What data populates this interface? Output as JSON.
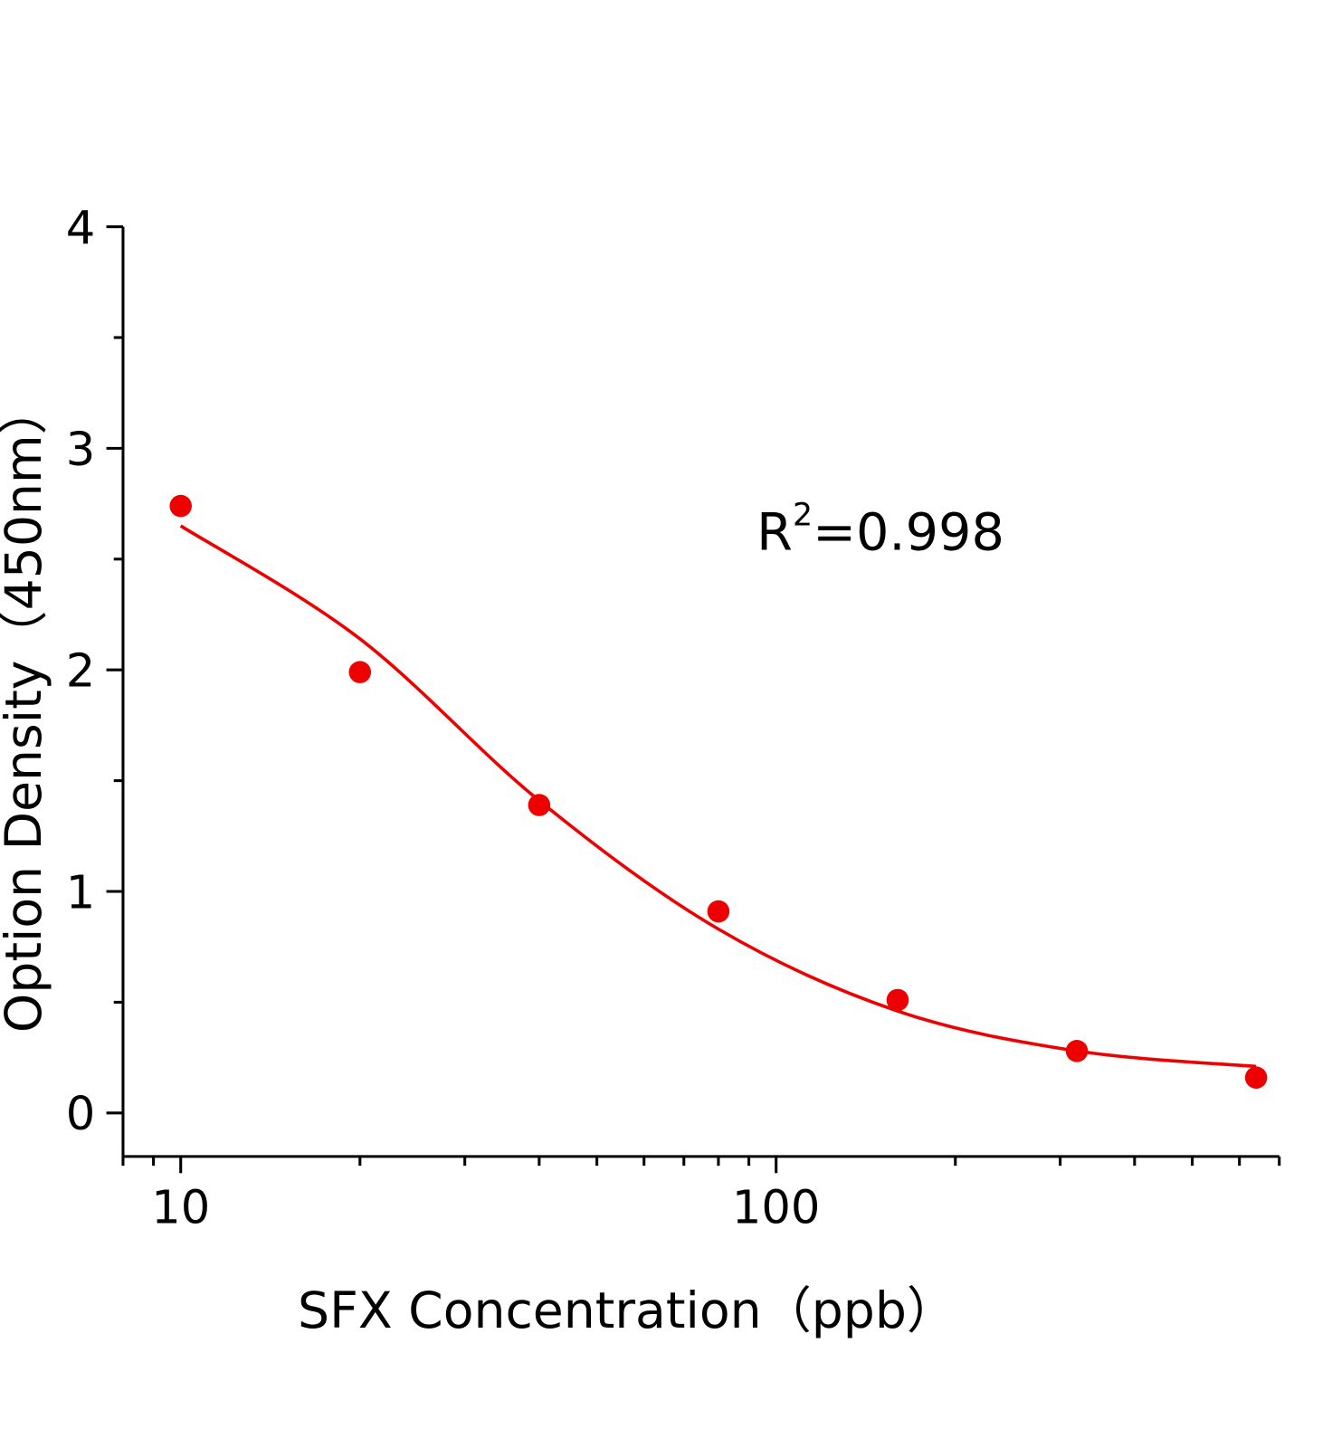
{
  "chart_data": {
    "type": "scatter",
    "title": "",
    "xlabel": "SFX Concentration（ppb）",
    "ylabel": "Option Density（450nm）",
    "xscale": "log",
    "xlim": [
      8,
      700
    ],
    "ylim": [
      -0.2,
      4
    ],
    "xticks": [
      10,
      100
    ],
    "xtick_labels": [
      "10",
      "100"
    ],
    "yticks": [
      0,
      1,
      2,
      3,
      4
    ],
    "ytick_labels": [
      "0",
      "1",
      "2",
      "3",
      "4"
    ],
    "grid": false,
    "legend": "none",
    "annotation": {
      "base": "R",
      "sup": "2",
      "rest": "=0.998"
    },
    "color": "#ee0000",
    "series": [
      {
        "kind": "points",
        "x": [
          10,
          20,
          40,
          80,
          160,
          320,
          640
        ],
        "y": [
          2.74,
          1.99,
          1.39,
          0.91,
          0.51,
          0.28,
          0.16
        ]
      },
      {
        "kind": "fit-curve",
        "x": [
          10,
          20,
          40,
          80,
          160,
          320,
          640
        ],
        "y": [
          2.65,
          2.14,
          1.41,
          0.83,
          0.46,
          0.28,
          0.21
        ]
      }
    ]
  }
}
